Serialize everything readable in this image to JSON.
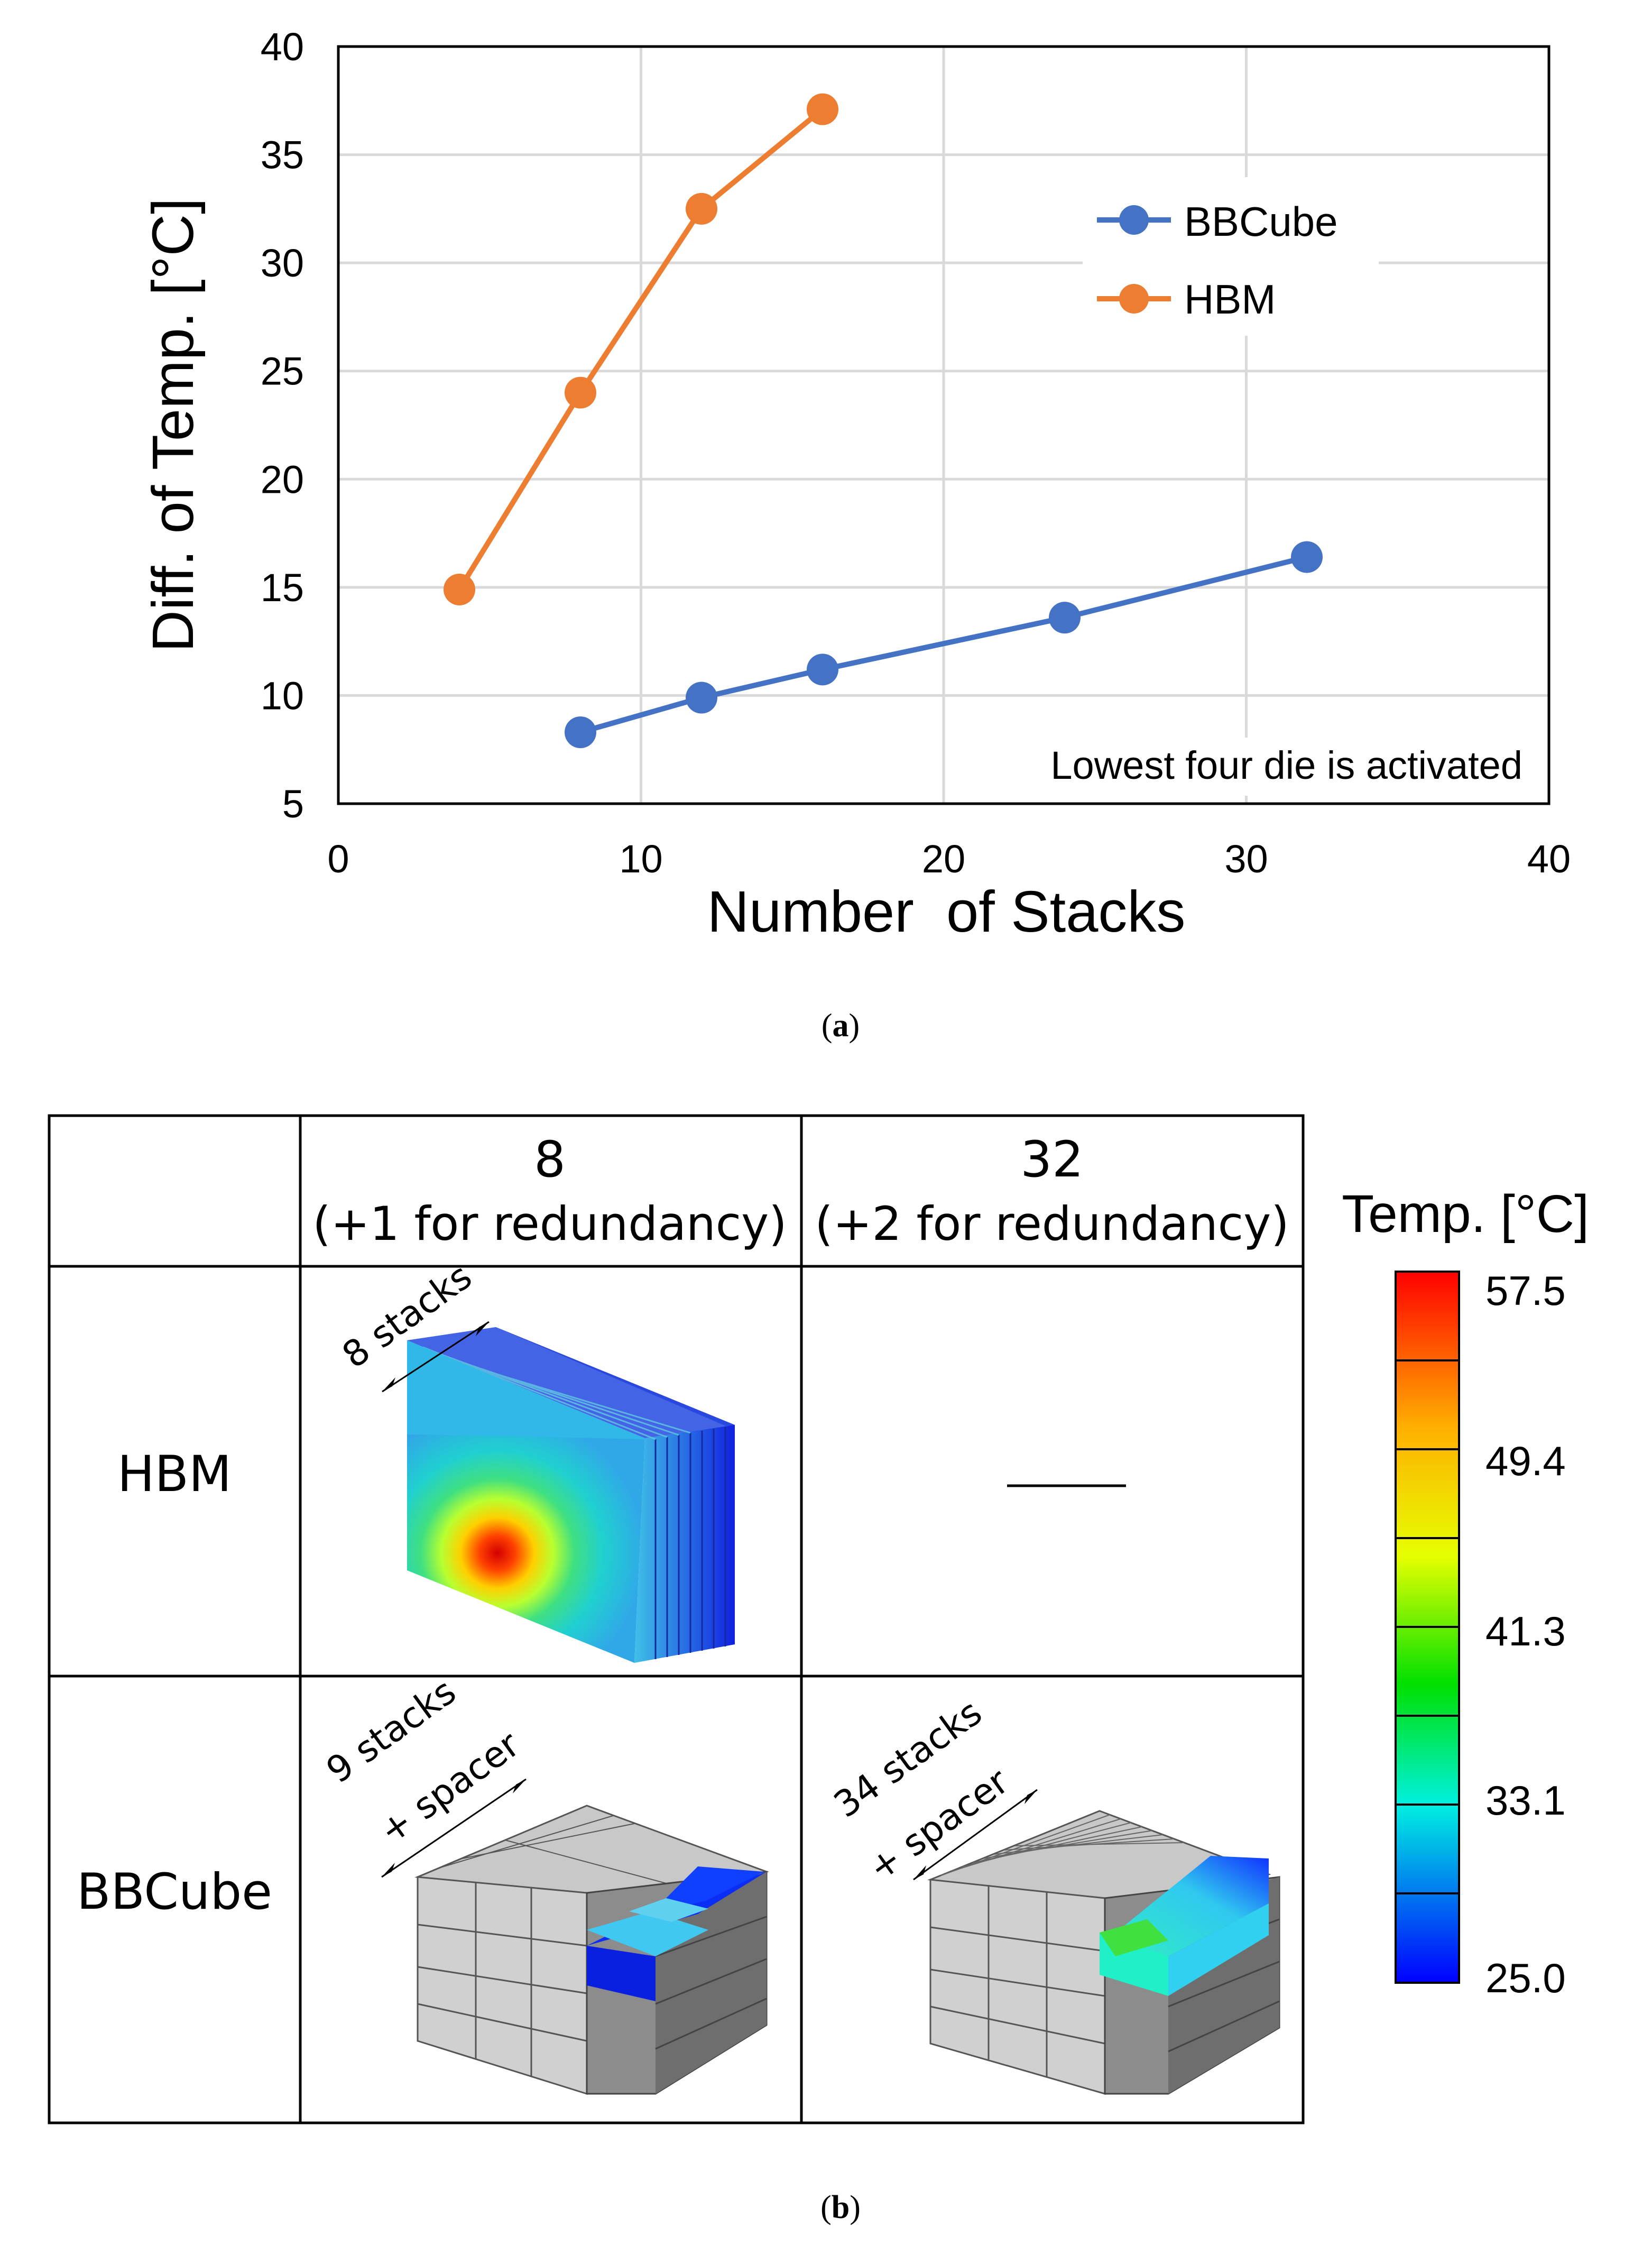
{
  "chart_data": {
    "type": "line",
    "title": "",
    "xlabel": "Number  of Stacks",
    "ylabel": "Diff. of Temp. [°C]",
    "xlim": [
      0,
      40
    ],
    "ylim": [
      5,
      40
    ],
    "xticks": [
      0,
      10,
      20,
      30,
      40
    ],
    "yticks": [
      5,
      10,
      15,
      20,
      25,
      30,
      35,
      40
    ],
    "grid": true,
    "legend_position": "top-right",
    "annotation": "Lowest four die is activated",
    "series": [
      {
        "name": "BBCube",
        "color": "#4472c4",
        "x": [
          8,
          12,
          16,
          24,
          32
        ],
        "y": [
          8.3,
          9.9,
          11.2,
          13.6,
          16.4
        ]
      },
      {
        "name": "HBM",
        "color": "#ed7d31",
        "x": [
          4,
          8,
          12,
          16
        ],
        "y": [
          14.9,
          24.0,
          32.5,
          37.1
        ]
      }
    ]
  },
  "captions": {
    "a": "(a)",
    "b": "(b)",
    "a_letter": "a",
    "b_letter": "b"
  },
  "table": {
    "col1": {
      "title": "8",
      "subtitle": "(+1 for redundancy)"
    },
    "col2": {
      "title": "32",
      "subtitle": "(+2 for redundancy)"
    },
    "row_hbm": "HBM",
    "row_bbcube": "BBCube",
    "hbm_8_label": "8 stacks",
    "bbcube_8_label_1": "9 stacks",
    "bbcube_8_label_2": "+ spacer",
    "bbcube_32_label_1": "34 stacks",
    "bbcube_32_label_2": "+ spacer"
  },
  "colorbar": {
    "title": "Temp. [°C]",
    "labels": [
      "57.5",
      "49.4",
      "41.3",
      "33.1",
      "25.0"
    ],
    "colors": [
      "#ff0000",
      "#ffb000",
      "#e6ff00",
      "#00e000",
      "#00f0e0",
      "#0000ff"
    ]
  }
}
